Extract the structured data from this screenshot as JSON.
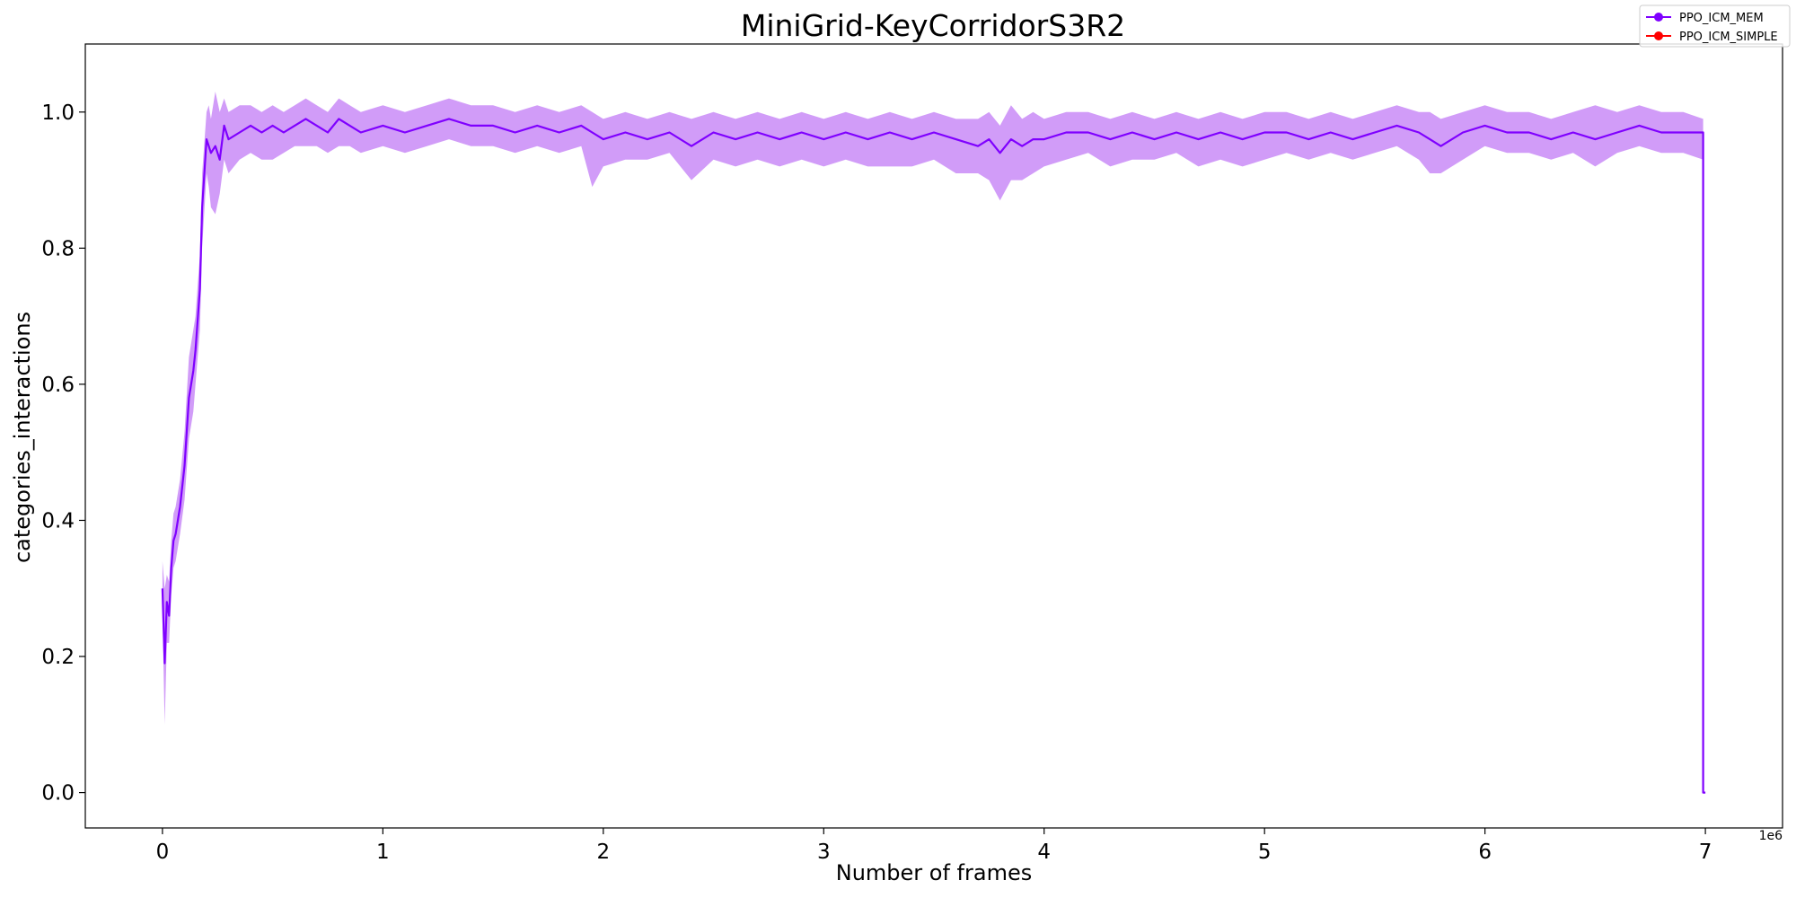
{
  "chart_data": {
    "type": "line",
    "title": "MiniGrid-KeyCorridorS3R2",
    "xlabel": "Number of frames",
    "ylabel": "categories_interactions",
    "x_offset_label": "1e6",
    "xlim": [
      -0.35,
      7.35
    ],
    "ylim": [
      -0.052,
      1.1
    ],
    "x_ticks": [
      0,
      1,
      2,
      3,
      4,
      5,
      6,
      7
    ],
    "x_tick_labels": [
      "0",
      "1",
      "2",
      "3",
      "4",
      "5",
      "6",
      "7"
    ],
    "y_ticks": [
      0.0,
      0.2,
      0.4,
      0.6,
      0.8,
      1.0
    ],
    "y_tick_labels": [
      "0.0",
      "0.2",
      "0.4",
      "0.6",
      "0.8",
      "1.0"
    ],
    "grid": false,
    "legend_position": "top-right",
    "series": [
      {
        "name": "PPO_ICM_MEM",
        "color": "#7f00ff",
        "band_color": "#c17bf5",
        "x": [
          0.0,
          0.01,
          0.02,
          0.03,
          0.04,
          0.05,
          0.06,
          0.08,
          0.1,
          0.12,
          0.14,
          0.15,
          0.17,
          0.18,
          0.2,
          0.21,
          0.22,
          0.24,
          0.26,
          0.28,
          0.3,
          0.35,
          0.4,
          0.45,
          0.5,
          0.55,
          0.6,
          0.65,
          0.7,
          0.75,
          0.8,
          0.85,
          0.9,
          1.0,
          1.1,
          1.2,
          1.3,
          1.4,
          1.5,
          1.6,
          1.7,
          1.8,
          1.9,
          1.95,
          2.0,
          2.1,
          2.2,
          2.3,
          2.4,
          2.5,
          2.6,
          2.7,
          2.8,
          2.9,
          3.0,
          3.1,
          3.2,
          3.3,
          3.4,
          3.5,
          3.6,
          3.7,
          3.75,
          3.8,
          3.85,
          3.9,
          3.95,
          4.0,
          4.1,
          4.2,
          4.3,
          4.4,
          4.5,
          4.6,
          4.7,
          4.8,
          4.9,
          5.0,
          5.1,
          5.2,
          5.3,
          5.4,
          5.5,
          5.6,
          5.7,
          5.75,
          5.8,
          5.9,
          6.0,
          6.1,
          6.2,
          6.3,
          6.4,
          6.5,
          6.6,
          6.7,
          6.8,
          6.9,
          6.99
        ],
        "y": [
          0.3,
          0.19,
          0.28,
          0.26,
          0.33,
          0.37,
          0.38,
          0.42,
          0.48,
          0.58,
          0.62,
          0.65,
          0.74,
          0.86,
          0.96,
          0.95,
          0.94,
          0.95,
          0.93,
          0.98,
          0.96,
          0.97,
          0.98,
          0.97,
          0.98,
          0.97,
          0.98,
          0.99,
          0.98,
          0.97,
          0.99,
          0.98,
          0.97,
          0.98,
          0.97,
          0.98,
          0.99,
          0.98,
          0.98,
          0.97,
          0.98,
          0.97,
          0.98,
          0.97,
          0.96,
          0.97,
          0.96,
          0.97,
          0.95,
          0.97,
          0.96,
          0.97,
          0.96,
          0.97,
          0.96,
          0.97,
          0.96,
          0.97,
          0.96,
          0.97,
          0.96,
          0.95,
          0.96,
          0.94,
          0.96,
          0.95,
          0.96,
          0.96,
          0.97,
          0.97,
          0.96,
          0.97,
          0.96,
          0.97,
          0.96,
          0.97,
          0.96,
          0.97,
          0.97,
          0.96,
          0.97,
          0.96,
          0.97,
          0.98,
          0.97,
          0.96,
          0.95,
          0.97,
          0.98,
          0.97,
          0.97,
          0.96,
          0.97,
          0.96,
          0.97,
          0.98,
          0.97,
          0.97,
          0.97
        ],
        "y_lower": [
          0.26,
          0.1,
          0.22,
          0.22,
          0.29,
          0.33,
          0.34,
          0.38,
          0.43,
          0.52,
          0.56,
          0.6,
          0.68,
          0.8,
          0.91,
          0.89,
          0.86,
          0.85,
          0.88,
          0.93,
          0.91,
          0.93,
          0.94,
          0.93,
          0.93,
          0.94,
          0.95,
          0.95,
          0.95,
          0.94,
          0.95,
          0.95,
          0.94,
          0.95,
          0.94,
          0.95,
          0.96,
          0.95,
          0.95,
          0.94,
          0.95,
          0.94,
          0.95,
          0.89,
          0.92,
          0.93,
          0.93,
          0.94,
          0.9,
          0.93,
          0.92,
          0.93,
          0.92,
          0.93,
          0.92,
          0.93,
          0.92,
          0.92,
          0.92,
          0.93,
          0.91,
          0.91,
          0.9,
          0.87,
          0.9,
          0.9,
          0.91,
          0.92,
          0.93,
          0.94,
          0.92,
          0.93,
          0.93,
          0.94,
          0.92,
          0.93,
          0.92,
          0.93,
          0.94,
          0.93,
          0.94,
          0.93,
          0.94,
          0.95,
          0.93,
          0.91,
          0.91,
          0.93,
          0.95,
          0.94,
          0.94,
          0.93,
          0.94,
          0.92,
          0.94,
          0.95,
          0.94,
          0.94,
          0.93
        ],
        "y_upper": [
          0.34,
          0.3,
          0.32,
          0.31,
          0.37,
          0.41,
          0.42,
          0.46,
          0.53,
          0.64,
          0.68,
          0.7,
          0.79,
          0.91,
          1.0,
          1.01,
          0.99,
          1.03,
          1.0,
          1.02,
          1.0,
          1.01,
          1.01,
          1.0,
          1.01,
          1.0,
          1.01,
          1.02,
          1.01,
          1.0,
          1.02,
          1.01,
          1.0,
          1.01,
          1.0,
          1.01,
          1.02,
          1.01,
          1.01,
          1.0,
          1.01,
          1.0,
          1.01,
          1.0,
          0.99,
          1.0,
          0.99,
          1.0,
          0.99,
          1.0,
          0.99,
          1.0,
          0.99,
          1.0,
          0.99,
          1.0,
          0.99,
          1.0,
          0.99,
          1.0,
          0.99,
          0.99,
          1.0,
          0.98,
          1.01,
          0.99,
          1.0,
          0.99,
          1.0,
          1.0,
          0.99,
          1.0,
          0.99,
          1.0,
          0.99,
          1.0,
          0.99,
          1.0,
          1.0,
          0.99,
          1.0,
          0.99,
          1.0,
          1.01,
          1.0,
          1.0,
          0.99,
          1.0,
          1.01,
          1.0,
          1.0,
          0.99,
          1.0,
          1.01,
          1.0,
          1.01,
          1.0,
          1.0,
          0.99
        ],
        "tail": [
          [
            6.99,
            0.0
          ],
          [
            7.0,
            0.0
          ]
        ]
      },
      {
        "name": "PPO_ICM_SIMPLE",
        "color": "#ff0000",
        "x": [],
        "y": []
      }
    ]
  }
}
